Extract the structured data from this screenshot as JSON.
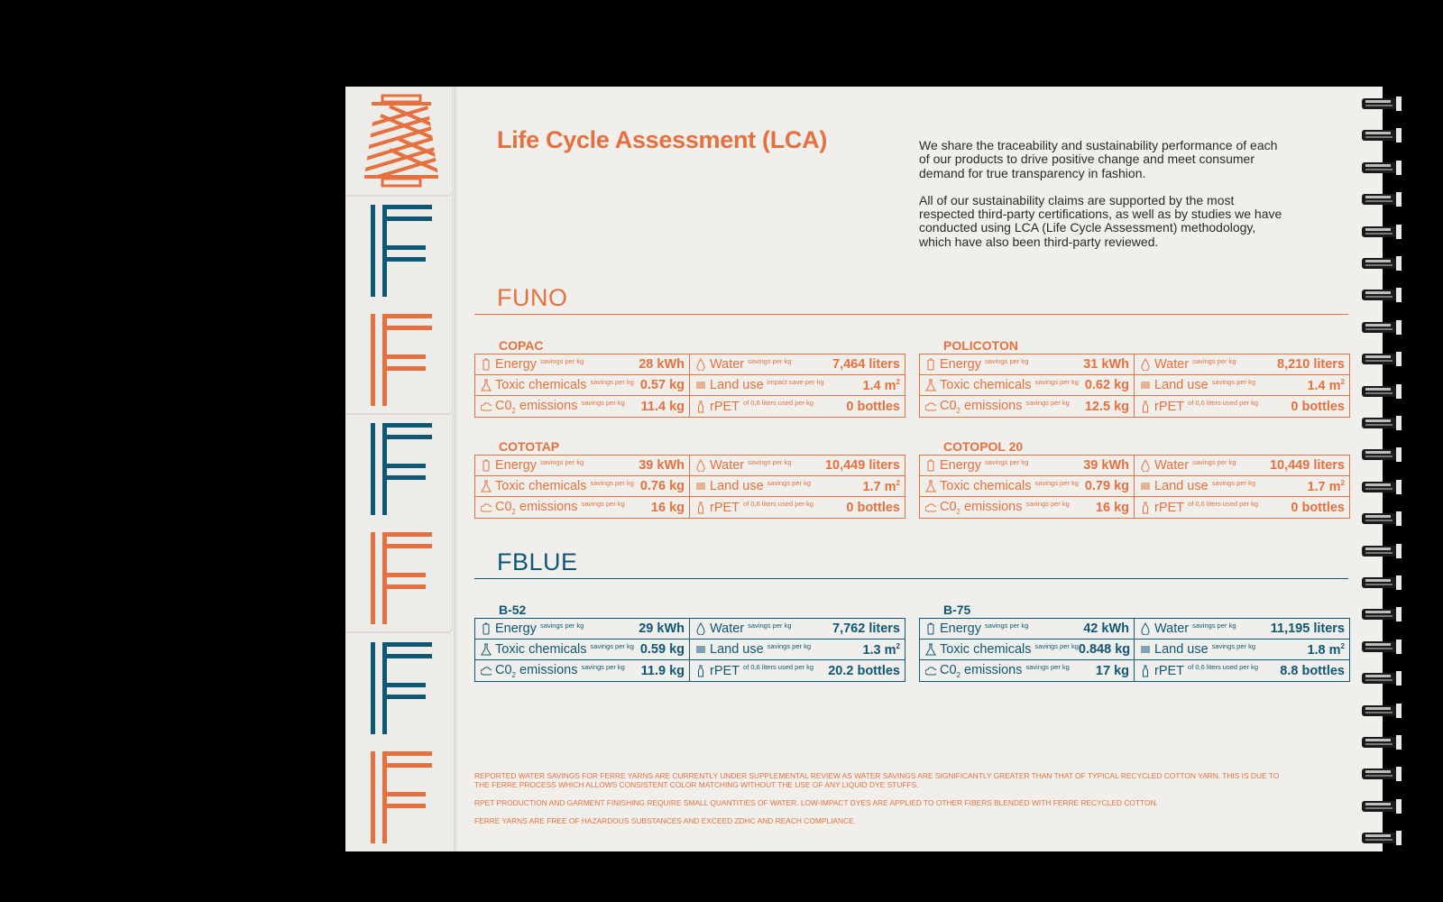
{
  "title": "Life Cycle Assessment (LCA)",
  "intro": [
    "We share the traceability and sustainability performance of each of our products to drive positive change and meet consumer demand for true transparency in fashion.",
    "All of our sustainability claims are supported by the most respected third-party certifications, as well as by studies we have conducted using LCA (Life Cycle Assessment) methodology, which have also been third-party reviewed."
  ],
  "colors": {
    "orange": "#e4713f",
    "blue": "#0e5876",
    "paper": "#f1efeb"
  },
  "sections": [
    {
      "name": "FUNO",
      "color": "orange",
      "products": [
        {
          "name": "COPAC",
          "rows": [
            [
              {
                "icon": "battery-icon",
                "label": "Energy",
                "note": "savings per kg",
                "value": "28 kWh"
              },
              {
                "icon": "water-drop-icon",
                "label": "Water",
                "note": "savings per kg",
                "value": "7,464 liters"
              }
            ],
            [
              {
                "icon": "flask-icon",
                "label": "Toxic chemicals",
                "note": "savings per kg",
                "value": "0.57 kg"
              },
              {
                "icon": "land-icon",
                "label": "Land use",
                "note": "impact save per kg",
                "value": "1.4 m",
                "sup": "2"
              }
            ],
            [
              {
                "icon": "cloud-co2-icon",
                "label": "C0",
                "sub": "2",
                "label2": " emissions",
                "note": "savings per kg",
                "value": "11.4 kg"
              },
              {
                "icon": "bottle-icon",
                "label": "rPET",
                "note": "of 0,6 liters used per kg",
                "value": "0 bottles"
              }
            ]
          ]
        },
        {
          "name": "POLICOTON",
          "rows": [
            [
              {
                "icon": "battery-icon",
                "label": "Energy",
                "note": "savings per kg",
                "value": "31 kWh"
              },
              {
                "icon": "water-drop-icon",
                "label": "Water",
                "note": "savings per kg",
                "value": "8,210 liters"
              }
            ],
            [
              {
                "icon": "flask-icon",
                "label": "Toxic chemicals",
                "note": "savings per kg",
                "value": "0.62 kg"
              },
              {
                "icon": "land-icon",
                "label": "Land use",
                "note": "savings per kg",
                "value": "1.4 m",
                "sup": "2"
              }
            ],
            [
              {
                "icon": "cloud-co2-icon",
                "label": "C0",
                "sub": "2",
                "label2": " emissions",
                "note": "savings per kg",
                "value": "12.5 kg"
              },
              {
                "icon": "bottle-icon",
                "label": "rPET",
                "note": "of 0,6 liters used per kg",
                "value": "0 bottles"
              }
            ]
          ]
        },
        {
          "name": "COTOTAP",
          "rows": [
            [
              {
                "icon": "battery-icon",
                "label": "Energy",
                "note": "savings per kg",
                "value": "39 kWh"
              },
              {
                "icon": "water-drop-icon",
                "label": "Water",
                "note": "savings per kg",
                "value": "10,449 liters"
              }
            ],
            [
              {
                "icon": "flask-icon",
                "label": "Toxic chemicals",
                "note": "savings per kg",
                "value": "0.76 kg"
              },
              {
                "icon": "land-icon",
                "label": "Land use",
                "note": "savings per kg",
                "value": "1.7 m",
                "sup": "2"
              }
            ],
            [
              {
                "icon": "cloud-co2-icon",
                "label": "C0",
                "sub": "2",
                "label2": " emissions",
                "note": "savings per kg",
                "value": "16 kg"
              },
              {
                "icon": "bottle-icon",
                "label": "rPET",
                "note": "of 0,6 liters used per kg",
                "value": "0 bottles"
              }
            ]
          ]
        },
        {
          "name": "COTOPOL 20",
          "rows": [
            [
              {
                "icon": "battery-icon",
                "label": "Energy",
                "note": "savings per kg",
                "value": "39 kWh"
              },
              {
                "icon": "water-drop-icon",
                "label": "Water",
                "note": "savings per kg",
                "value": "10,449 liters"
              }
            ],
            [
              {
                "icon": "flask-icon",
                "label": "Toxic chemicals",
                "note": "savings per kg",
                "value": "0.79 kg"
              },
              {
                "icon": "land-icon",
                "label": "Land use",
                "note": "savings per kg",
                "value": "1.7 m",
                "sup": "2"
              }
            ],
            [
              {
                "icon": "cloud-co2-icon",
                "label": "C0",
                "sub": "2",
                "label2": " emissions",
                "note": "savings per kg",
                "value": "16 kg"
              },
              {
                "icon": "bottle-icon",
                "label": "rPET",
                "note": "of 0,6 liters used per kg",
                "value": "0 bottles"
              }
            ]
          ]
        }
      ]
    },
    {
      "name": "FBLUE",
      "color": "blue",
      "products": [
        {
          "name": "B-52",
          "rows": [
            [
              {
                "icon": "battery-icon",
                "label": "Energy",
                "note": "savings per kg",
                "value": "29 kWh"
              },
              {
                "icon": "water-drop-icon",
                "label": "Water",
                "note": "savings per kg",
                "value": "7,762 liters"
              }
            ],
            [
              {
                "icon": "flask-icon",
                "label": "Toxic chemicals",
                "note": "savings per kg",
                "value": "0.59 kg"
              },
              {
                "icon": "land-icon",
                "label": "Land use",
                "note": "savings per kg",
                "value": "1.3 m",
                "sup": "2"
              }
            ],
            [
              {
                "icon": "cloud-co2-icon",
                "label": "C0",
                "sub": "2",
                "label2": " emissions",
                "note": "savings per kg",
                "value": "11.9 kg"
              },
              {
                "icon": "bottle-icon",
                "label": "rPET",
                "note": "of 0,6 liters used per kg",
                "value": "20.2 bottles"
              }
            ]
          ]
        },
        {
          "name": "B-75",
          "rows": [
            [
              {
                "icon": "battery-icon",
                "label": "Energy",
                "note": "savings per kg",
                "value": "42 kWh"
              },
              {
                "icon": "water-drop-icon",
                "label": "Water",
                "note": "savings per kg",
                "value": "11,195 liters"
              }
            ],
            [
              {
                "icon": "flask-icon",
                "label": "Toxic chemicals",
                "note": "savings per kg",
                "value": "0.848 kg"
              },
              {
                "icon": "land-icon",
                "label": "Land use",
                "note": "savings per kg",
                "value": "1.8 m",
                "sup": "2"
              }
            ],
            [
              {
                "icon": "cloud-co2-icon",
                "label": "C0",
                "sub": "2",
                "label2": " emissions",
                "note": "savings per kg",
                "value": "17 kg"
              },
              {
                "icon": "bottle-icon",
                "label": "rPET",
                "note": "of 0,6 liters used per kg",
                "value": "8.8 bottles"
              }
            ]
          ]
        }
      ]
    }
  ],
  "footnotes": [
    "Reported water savings for Ferre yarns are currently under supplemental review as water savings are significantly greater than that of typical recycled cotton yarn. This is due to the Ferre process which allows consistent color matching without the use of any liquid dye stuffs.",
    "rPET production and garment finishing require small quantities of water. Low-impact dyes are applied to other fibers blended with Ferre recycled cotton.",
    "Ferre yarns are free of hazardous substances and exceed ZDHC and REACH compliance."
  ],
  "spine_logos": [
    "blue",
    "orange",
    "blue",
    "orange",
    "blue",
    "orange"
  ]
}
